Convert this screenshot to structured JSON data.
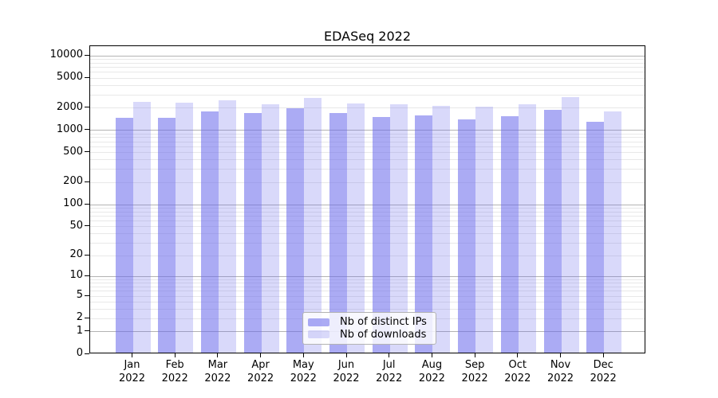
{
  "chart_data": {
    "type": "bar",
    "title": "EDASeq 2022",
    "categories": [
      "Jan",
      "Feb",
      "Mar",
      "Apr",
      "May",
      "Jun",
      "Jul",
      "Aug",
      "Sep",
      "Oct",
      "Nov",
      "Dec"
    ],
    "category_year": "2022",
    "series": [
      {
        "name": "Nb of distinct IPs",
        "color": "rgba(102,102,235,0.55)",
        "values": [
          1420,
          1410,
          1700,
          1610,
          1880,
          1640,
          1450,
          1500,
          1340,
          1470,
          1810,
          1240
        ]
      },
      {
        "name": "Nb of downloads",
        "color": "rgba(102,102,235,0.25)",
        "values": [
          2270,
          2220,
          2400,
          2130,
          2600,
          2200,
          2130,
          2010,
          1960,
          2150,
          2690,
          1700
        ]
      }
    ],
    "yscale": "log1p",
    "ylim": [
      0,
      13450
    ],
    "yticks": [
      0,
      1,
      2,
      5,
      10,
      20,
      50,
      100,
      200,
      500,
      1000,
      2000,
      5000,
      10000
    ],
    "grid": {
      "major_values": [
        1,
        10,
        100,
        1000,
        10000
      ],
      "major_color": "#b3b3b3",
      "minor_color": "#e8e8e8"
    },
    "legend": {
      "position": "inside-bottom-center",
      "background": "#ffffff",
      "border_color": "#b3b3b3"
    },
    "frame_color": "#000000",
    "background_color": "#ffffff"
  }
}
